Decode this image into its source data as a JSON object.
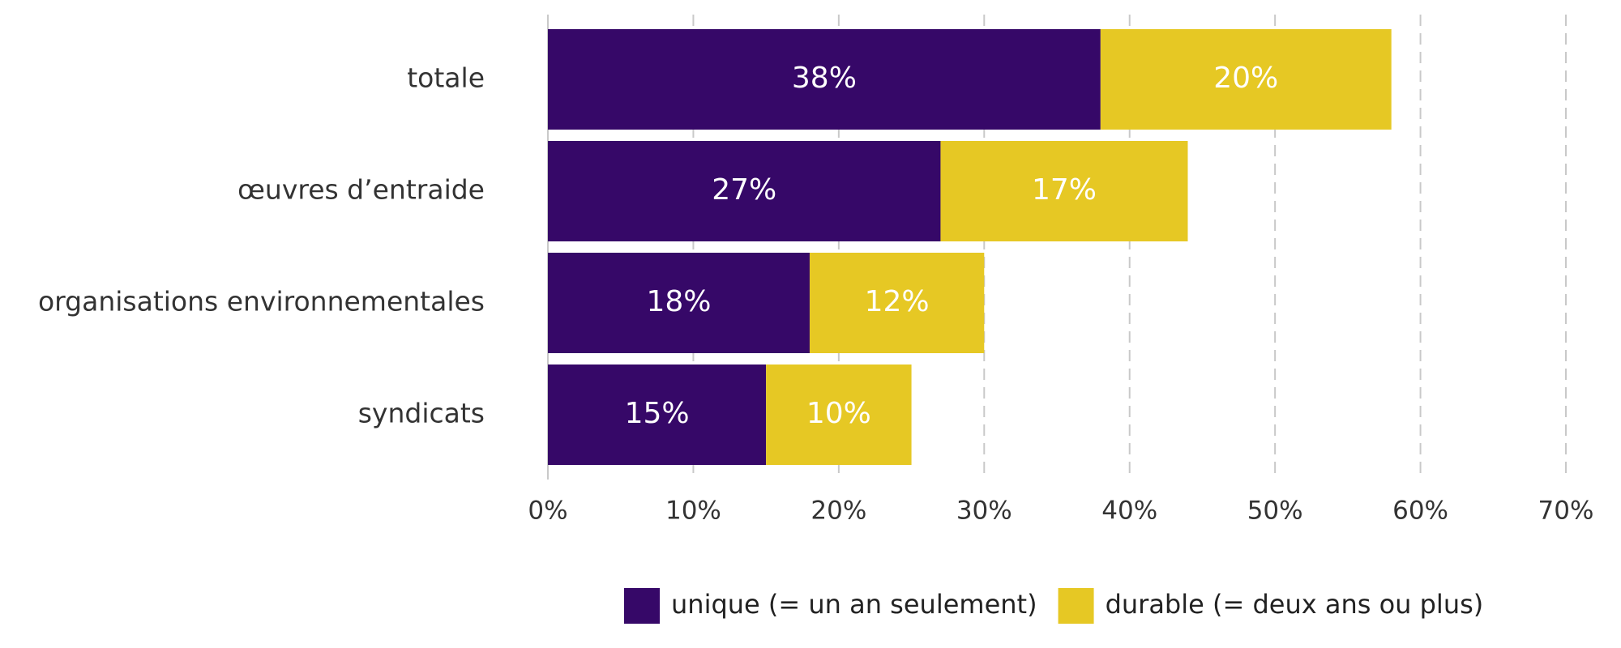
{
  "chart_data": {
    "type": "bar",
    "orientation": "horizontal",
    "stacked": true,
    "categories": [
      "totale",
      "œuvres d’entraide",
      "organisations environnementales",
      "syndicats"
    ],
    "series": [
      {
        "name": "unique (= un an seulement)",
        "values": [
          38,
          27,
          18,
          15
        ],
        "labels": [
          "38%",
          "27%",
          "18%",
          "15%"
        ],
        "color": "#360868"
      },
      {
        "name": "durable (= deux ans ou plus)",
        "values": [
          20,
          17,
          12,
          10
        ],
        "labels": [
          "20%",
          "17%",
          "12%",
          "10%"
        ],
        "color": "#E6C824"
      }
    ],
    "xlim": [
      0,
      70
    ],
    "xticks": [
      0,
      10,
      20,
      30,
      40,
      50,
      60,
      70
    ],
    "xtick_labels": [
      "0%",
      "10%",
      "20%",
      "30%",
      "40%",
      "50%",
      "60%",
      "70%"
    ],
    "grid": true,
    "grid_style": "dashed vertical",
    "legend_position": "bottom",
    "title": "",
    "xlabel": "",
    "ylabel": ""
  }
}
